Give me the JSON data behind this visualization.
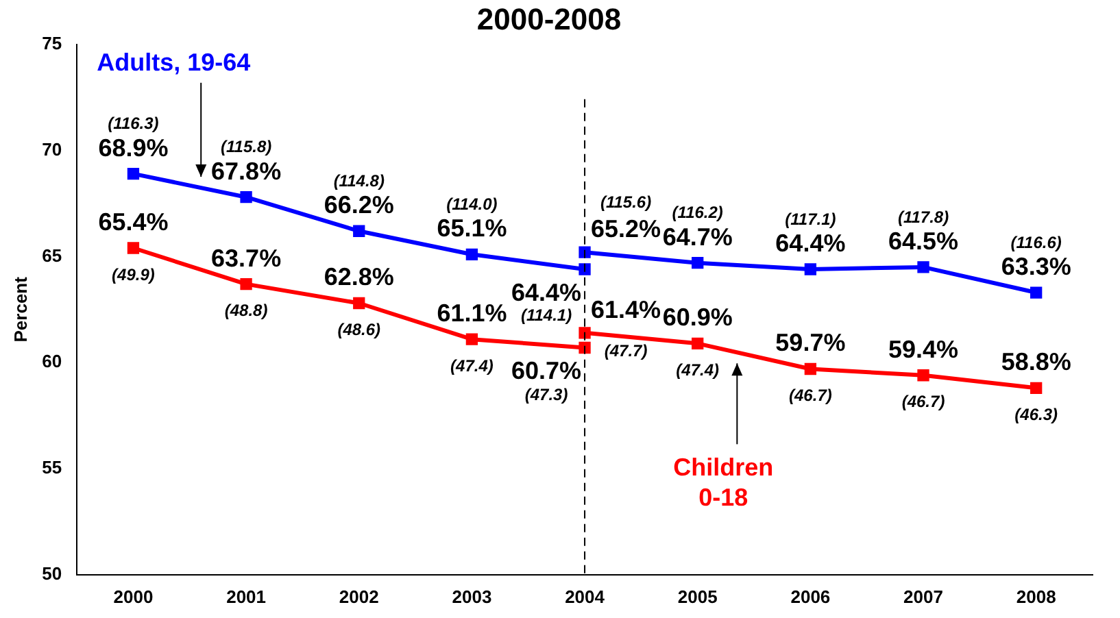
{
  "chart_data": {
    "type": "line",
    "title": "2000-2008",
    "ylabel": "Percent",
    "categories": [
      "2000",
      "2001",
      "2002",
      "2003",
      "2004",
      "2005",
      "2006",
      "2007",
      "2008"
    ],
    "ylim": [
      50,
      75
    ],
    "yticks": [
      50,
      55,
      60,
      65,
      70,
      75
    ],
    "grid": false,
    "legend": false,
    "marker": "square",
    "line_style": "solid",
    "series": [
      {
        "name": "Adults, 19-64",
        "color": "#0000ff",
        "values": [
          68.9,
          67.8,
          66.2,
          65.1,
          64.4,
          null,
          null,
          null,
          null
        ],
        "value_labels": [
          "68.9%",
          "67.8%",
          "66.2%",
          "65.1%",
          "64.4%",
          null,
          null,
          null,
          null
        ]
      },
      {
        "color": "#0000ff",
        "values": [
          null,
          null,
          null,
          null,
          65.2,
          64.7,
          64.4,
          64.5,
          63.3
        ],
        "value_labels": [
          null,
          null,
          null,
          null,
          "65.2%",
          "64.7%",
          "64.4%",
          "64.5%",
          "63.3%"
        ]
      },
      {
        "color": "#ff0000",
        "values": [
          65.4,
          63.7,
          62.8,
          61.1,
          60.7,
          null,
          null,
          null,
          null
        ],
        "value_labels": [
          "65.4%",
          "63.7%",
          "62.8%",
          "61.1%",
          "60.7%",
          null,
          null,
          null,
          null
        ]
      },
      {
        "name": "Children 0-18",
        "color": "#ff0000",
        "values": [
          null,
          null,
          null,
          null,
          61.4,
          60.9,
          59.7,
          59.4,
          58.8
        ],
        "value_labels": [
          null,
          null,
          null,
          null,
          "61.4%",
          "60.9%",
          "59.7%",
          "59.4%",
          "58.8%"
        ]
      }
    ],
    "ref_lines": [
      {
        "axis": "x",
        "value": "2004",
        "line_style": "dashed",
        "color": "#000000"
      }
    ],
    "annotations": [
      {
        "text": "(116.3)",
        "x": "2000",
        "y": 68.9
      },
      {
        "text": "(115.8)",
        "x": "2001",
        "y": 67.8
      },
      {
        "text": "(114.8)",
        "x": "2002",
        "y": 66.2
      },
      {
        "text": "(114.0)",
        "x": "2003",
        "y": 65.1
      },
      {
        "text": "(114.1)",
        "x": "2004",
        "y": 64.4
      },
      {
        "text": "(115.6)",
        "x": "2004",
        "y": 65.2
      },
      {
        "text": "(116.2)",
        "x": "2005",
        "y": 64.7
      },
      {
        "text": "(117.1)",
        "x": "2006",
        "y": 64.4
      },
      {
        "text": "(117.8)",
        "x": "2007",
        "y": 64.5
      },
      {
        "text": "(116.6)",
        "x": "2008",
        "y": 63.3
      },
      {
        "text": "(49.9)",
        "x": "2000",
        "y": 65.4
      },
      {
        "text": "(48.8)",
        "x": "2001",
        "y": 63.7
      },
      {
        "text": "(48.6)",
        "x": "2002",
        "y": 62.8
      },
      {
        "text": "(47.4)",
        "x": "2003",
        "y": 61.1
      },
      {
        "text": "(47.3)",
        "x": "2004",
        "y": 60.7
      },
      {
        "text": "(47.7)",
        "x": "2004",
        "y": 61.4
      },
      {
        "text": "(47.4)",
        "x": "2005",
        "y": 60.9
      },
      {
        "text": "(46.7)",
        "x": "2006",
        "y": 59.7
      },
      {
        "text": "(46.7)",
        "x": "2007",
        "y": 59.4
      },
      {
        "text": "(46.3)",
        "x": "2008",
        "y": 58.8
      }
    ]
  }
}
